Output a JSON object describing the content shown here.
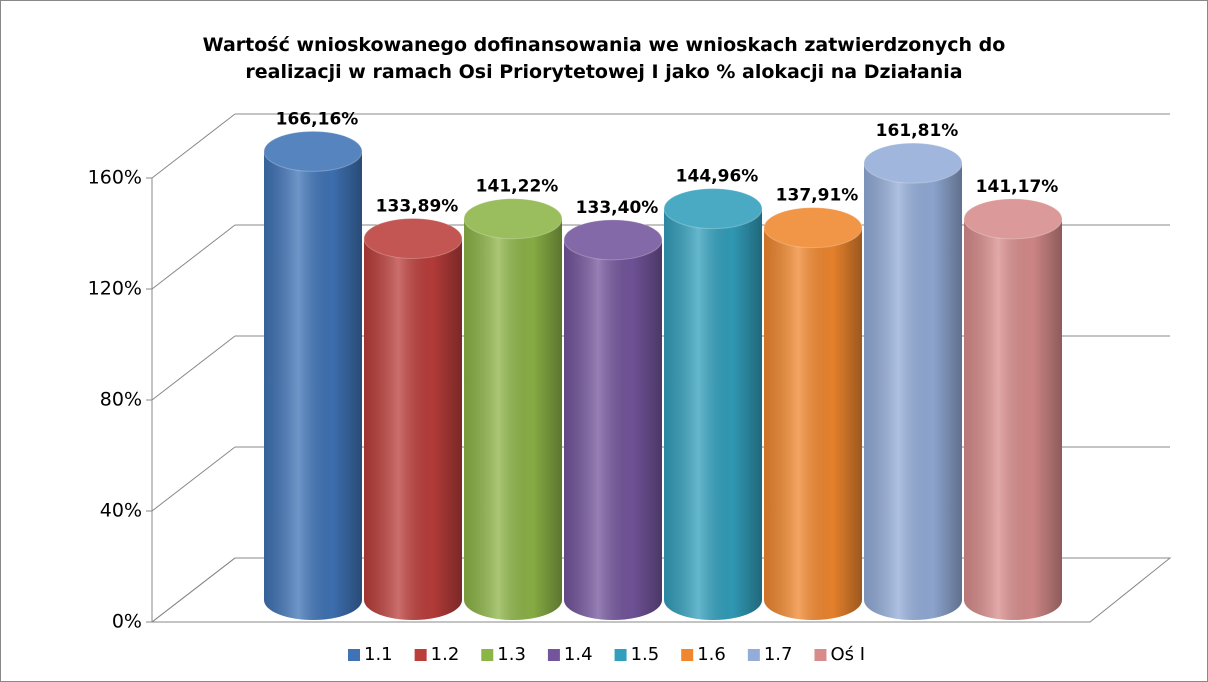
{
  "chart_data": {
    "type": "bar",
    "title": "Wartość wnioskowanego dofinansowania we wnioskach zatwierdzonych do realizacji w ramach Osi Priorytetowej I jako % alokacji na Działania",
    "series": [
      {
        "name": "1.1",
        "color": "#3f73b6",
        "values": [
          166.16
        ],
        "value_labels": [
          "166,16%"
        ]
      },
      {
        "name": "1.2",
        "color": "#bb3e3b",
        "values": [
          133.89
        ],
        "value_labels": [
          "133,89%"
        ]
      },
      {
        "name": "1.3",
        "color": "#8db447",
        "values": [
          141.22
        ],
        "value_labels": [
          "141,22%"
        ]
      },
      {
        "name": "1.4",
        "color": "#73559c",
        "values": [
          133.4
        ],
        "value_labels": [
          "133,40%"
        ]
      },
      {
        "name": "1.5",
        "color": "#329fbc",
        "values": [
          144.96
        ],
        "value_labels": [
          "144,96%"
        ]
      },
      {
        "name": "1.6",
        "color": "#f0872e",
        "values": [
          137.91
        ],
        "value_labels": [
          "137,91%"
        ]
      },
      {
        "name": "1.7",
        "color": "#93acd8",
        "values": [
          161.81
        ],
        "value_labels": [
          "161,81%"
        ]
      },
      {
        "name": "Oś I",
        "color": "#d78c8b",
        "values": [
          141.17
        ],
        "value_labels": [
          "141,17%"
        ]
      }
    ],
    "ylim": [
      0,
      160
    ],
    "yticks": [
      {
        "value": 0,
        "label": "0%"
      },
      {
        "value": 40,
        "label": "40%"
      },
      {
        "value": 80,
        "label": "80%"
      },
      {
        "value": 120,
        "label": "120%"
      },
      {
        "value": 160,
        "label": "160%"
      }
    ],
    "grid": true,
    "legend": "bottom"
  }
}
